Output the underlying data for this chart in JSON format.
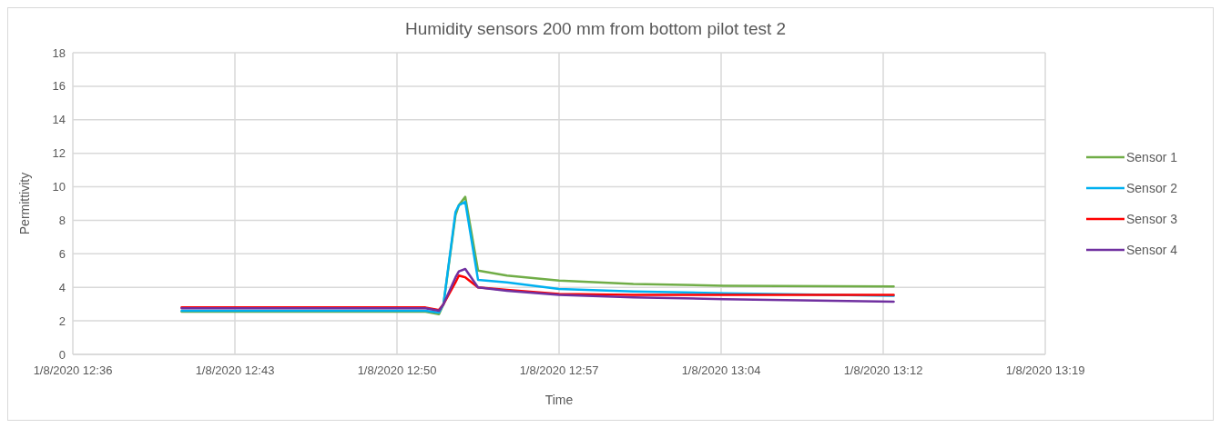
{
  "chart_data": {
    "type": "line",
    "title": "Humidity sensors 200 mm from bottom pilot test 2",
    "xlabel": "Time",
    "ylabel": "Permittivity",
    "x": [
      "2020-01-08T12:40:50",
      "2020-01-08T12:46:00",
      "2020-01-08T12:51:40",
      "2020-01-08T12:52:16",
      "2020-01-08T12:52:28",
      "2020-01-08T12:53:00",
      "2020-01-08T12:53:09",
      "2020-01-08T12:53:26",
      "2020-01-08T12:54:00",
      "2020-01-08T12:55:17",
      "2020-01-08T12:57:36",
      "2020-01-08T13:00:54",
      "2020-01-08T13:04:55",
      "2020-01-08T13:12:28"
    ],
    "series": [
      {
        "name": "Sensor 1",
        "color": "#70ad47",
        "values": [
          2.55,
          2.55,
          2.55,
          2.4,
          3.0,
          8.3,
          8.9,
          9.4,
          5.0,
          4.7,
          4.4,
          4.2,
          4.1,
          4.05
        ]
      },
      {
        "name": "Sensor 2",
        "color": "#00b0f0",
        "values": [
          2.6,
          2.6,
          2.6,
          2.5,
          3.0,
          8.5,
          8.9,
          9.1,
          4.45,
          4.3,
          3.9,
          3.75,
          3.65,
          3.5
        ]
      },
      {
        "name": "Sensor 3",
        "color": "#ff0000",
        "values": [
          2.8,
          2.8,
          2.8,
          2.65,
          3.0,
          4.3,
          4.7,
          4.6,
          4.0,
          3.85,
          3.6,
          3.55,
          3.55,
          3.55
        ]
      },
      {
        "name": "Sensor 4",
        "color": "#7030a0",
        "values": [
          2.75,
          2.75,
          2.75,
          2.6,
          3.0,
          4.6,
          4.95,
          5.1,
          4.0,
          3.8,
          3.55,
          3.4,
          3.3,
          3.15
        ]
      }
    ],
    "xlim": [
      "2020-01-08T12:36:00",
      "2020-01-08T13:19:12"
    ],
    "xticks": [
      {
        "value": "2020-01-08T12:36:00",
        "label": "1/8/2020 12:36"
      },
      {
        "value": "2020-01-08T12:43:12",
        "label": "1/8/2020 12:43"
      },
      {
        "value": "2020-01-08T12:50:24",
        "label": "1/8/2020 12:50"
      },
      {
        "value": "2020-01-08T12:57:36",
        "label": "1/8/2020 12:57"
      },
      {
        "value": "2020-01-08T13:04:48",
        "label": "1/8/2020 13:04"
      },
      {
        "value": "2020-01-08T13:12:00",
        "label": "1/8/2020 13:12"
      },
      {
        "value": "2020-01-08T13:19:12",
        "label": "1/8/2020 13:19"
      }
    ],
    "ylim": [
      0,
      18
    ],
    "yticks": [
      0,
      2,
      4,
      6,
      8,
      10,
      12,
      14,
      16,
      18
    ],
    "grid": true,
    "legend": "right",
    "marker": "none",
    "line_style": "solid"
  }
}
